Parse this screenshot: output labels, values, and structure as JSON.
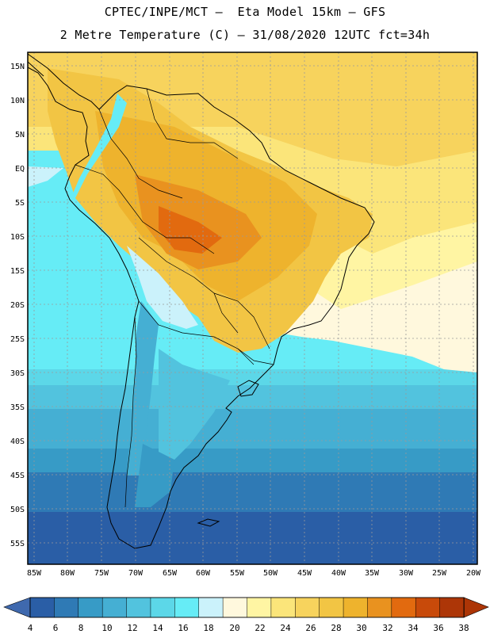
{
  "header": {
    "title_line1": "CPTEC/INPE/MCT –  Eta Model 15km – GFS",
    "title_line2": "2 Metre Temperature (C) – 31/08/2020 12UTC fct=34h"
  },
  "map": {
    "lat_labels": [
      "15N",
      "10N",
      "5N",
      "EQ",
      "5S",
      "10S",
      "15S",
      "20S",
      "25S",
      "30S",
      "35S",
      "40S",
      "45S",
      "50S",
      "55S"
    ],
    "lon_labels": [
      "85W",
      "80W",
      "75W",
      "70W",
      "65W",
      "60W",
      "55W",
      "50W",
      "45W",
      "40W",
      "35W",
      "30W",
      "25W",
      "20W"
    ]
  },
  "colorbar": {
    "values": [
      "4",
      "6",
      "8",
      "10",
      "12",
      "14",
      "16",
      "18",
      "20",
      "22",
      "24",
      "26",
      "28",
      "30",
      "32",
      "34",
      "36",
      "38"
    ],
    "colors": [
      "#2a5ea6",
      "#2f7ab5",
      "#379bc6",
      "#45afd3",
      "#52c3de",
      "#5cd7e8",
      "#66ecf6",
      "#cbf2fb",
      "#fff8dd",
      "#fff5a3",
      "#fbe57a",
      "#f7d35d",
      "#f2c544",
      "#eeb32d",
      "#e9921f",
      "#e26a0f",
      "#c84a0a",
      "#ad3607"
    ],
    "left_arrow_color": "#3f69ae",
    "right_arrow_color": "#ac3506"
  }
}
